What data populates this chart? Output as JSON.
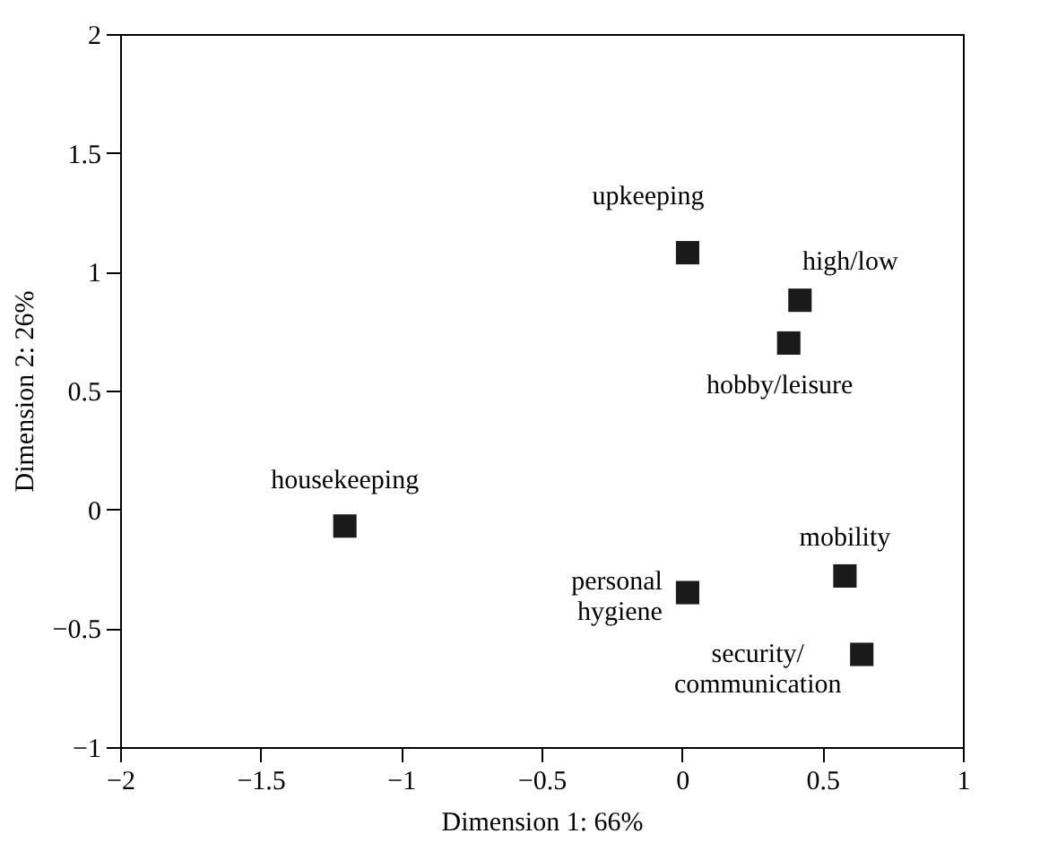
{
  "chart_data": {
    "type": "scatter",
    "xlabel": "Dimension 1: 66%",
    "ylabel": "Dimension 2: 26%",
    "series": [
      {
        "color": "#1a1a1a",
        "x": [
          0.02,
          0.42,
          0.38,
          -1.2,
          0.02,
          0.58,
          0.64
        ],
        "values": [
          1.08,
          0.88,
          0.7,
          -0.07,
          -0.35,
          -0.28,
          -0.61
        ]
      }
    ],
    "annotations": [
      {
        "text": "upkeeping",
        "x": 0.02,
        "y": 1.08
      },
      {
        "text": "high/low",
        "x": 0.42,
        "y": 0.88
      },
      {
        "text": "hobby/leisure",
        "x": 0.38,
        "y": 0.7
      },
      {
        "text": "housekeeping",
        "x": -1.2,
        "y": -0.07
      },
      {
        "text": "personal\nhygiene",
        "x": 0.02,
        "y": -0.35
      },
      {
        "text": "mobility",
        "x": 0.58,
        "y": -0.28
      },
      {
        "text": "security/\ncommunication",
        "x": 0.64,
        "y": -0.61
      }
    ],
    "marker": "square",
    "grid": false,
    "xlim": [
      -2,
      1
    ],
    "ylim": [
      -1,
      2
    ],
    "xticks": [
      {
        "value": -2,
        "label": "−2"
      },
      {
        "value": -1.5,
        "label": "−1.5"
      },
      {
        "value": -1,
        "label": "−1"
      },
      {
        "value": -0.5,
        "label": "−0.5"
      },
      0,
      0.5,
      1
    ],
    "yticks": [
      {
        "value": -1,
        "label": "−1"
      },
      {
        "value": -0.5,
        "label": "−0.5"
      },
      0,
      0.5,
      1,
      1.5,
      2
    ]
  }
}
